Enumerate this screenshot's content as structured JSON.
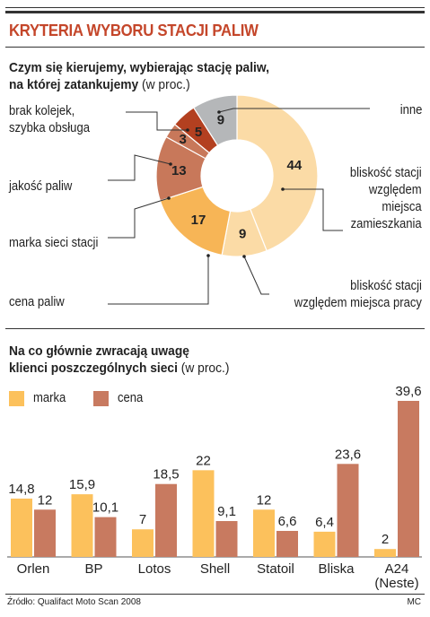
{
  "title": "KRYTERIA WYBORU STACJI PALIW",
  "section1": {
    "title_bold_line1": "Czym się kierujemy, wybierając stację paliw,",
    "title_bold_line2": "na której zatankujemy",
    "title_note": "(w proc.)"
  },
  "section2": {
    "title_bold_line1": "Na co głównie zwracają uwagę",
    "title_bold_line2": "klienci poszczególnych sieci",
    "title_note": "(w proc.)"
  },
  "colors": {
    "light": "#fbdba6",
    "orange": "#f7b556",
    "copper": "#c8785a",
    "darkred": "#b34020",
    "gray": "#b5b7b9",
    "marka": "#fcc15c",
    "cena": "#c87a60"
  },
  "chart_data": [
    {
      "type": "pie",
      "variant": "donut",
      "slices": [
        {
          "label": "bliskość stacji względem miejsca zamieszkania",
          "label_lines": [
            "bliskość stacji",
            "względem",
            "miejsca",
            "zamieszkania"
          ],
          "value": 44,
          "color": "#fbdba6"
        },
        {
          "label": "bliskość stacji względem miejsca pracy",
          "label_lines": [
            "bliskość stacji",
            "względem miejsca pracy"
          ],
          "value": 9,
          "color": "#fbdba6"
        },
        {
          "label": "cena paliw",
          "label_lines": [
            "cena paliw"
          ],
          "value": 17,
          "color": "#f7b556"
        },
        {
          "label": "marka sieci stacji",
          "label_lines": [
            "marka sieci stacji"
          ],
          "value": 13,
          "color": "#c8785a"
        },
        {
          "label": "jakość paliw",
          "label_lines": [
            "jakość paliw"
          ],
          "value": 3,
          "color": "#c8785a"
        },
        {
          "label": "brak kolejek, szybka obsługa",
          "label_lines": [
            "brak kolejek,",
            "szybka obsługa"
          ],
          "value": 5,
          "color": "#b34020"
        },
        {
          "label": "inne",
          "label_lines": [
            "inne"
          ],
          "value": 9,
          "color": "#b5b7b9"
        }
      ]
    },
    {
      "type": "bar",
      "categories": [
        "Orlen",
        "BP",
        "Lotos",
        "Shell",
        "Statoil",
        "Bliska",
        "A24 (Neste)"
      ],
      "category_lines": [
        [
          "Orlen"
        ],
        [
          "BP"
        ],
        [
          "Lotos"
        ],
        [
          "Shell"
        ],
        [
          "Statoil"
        ],
        [
          "Bliska"
        ],
        [
          "A24",
          "(Neste)"
        ]
      ],
      "series": [
        {
          "name": "marka",
          "values": [
            14.8,
            15.9,
            7,
            22,
            12,
            6.4,
            2
          ],
          "labels": [
            "14,8",
            "15,9",
            "7",
            "22",
            "12",
            "6,4",
            "2"
          ],
          "color": "#fcc15c"
        },
        {
          "name": "cena",
          "values": [
            12,
            10.1,
            18.5,
            9.1,
            6.6,
            23.6,
            39.6
          ],
          "labels": [
            "12",
            "10,1",
            "18,5",
            "9,1",
            "6,6",
            "23,6",
            "39,6"
          ],
          "color": "#c87a60"
        }
      ],
      "ylim": [
        0,
        39.6
      ],
      "grid": false,
      "legend": "top-left"
    }
  ],
  "footer": {
    "source": "Źródło: Qualifact Moto Scan 2008",
    "author": "MC"
  }
}
